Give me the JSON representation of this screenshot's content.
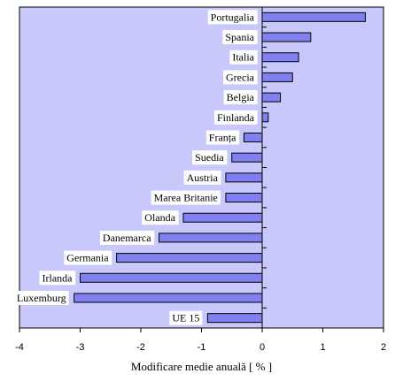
{
  "chart_data": {
    "type": "bar",
    "orientation": "horizontal",
    "categories": [
      "Portugalia",
      "Spania",
      "Italia",
      "Grecia",
      "Belgia",
      "Finlanda",
      "Franța",
      "Suedia",
      "Austria",
      "Marea Britanie",
      "Olanda",
      "Danemarca",
      "Germania",
      "Irlanda",
      "Luxemburg",
      "UE 15"
    ],
    "values": [
      1.7,
      0.8,
      0.6,
      0.5,
      0.3,
      0.1,
      -0.3,
      -0.5,
      -0.6,
      -0.6,
      -1.3,
      -1.7,
      -2.4,
      -3.0,
      -3.1,
      -0.9
    ],
    "xlim": [
      -4,
      2
    ],
    "xticks": [
      "-4",
      "-3",
      "-2",
      "-1",
      "0",
      "1",
      "2"
    ],
    "xlabel": "Modificare medie anuală  [ % ]",
    "title": "",
    "grid": false,
    "colors": {
      "plot_bg": "#c8c8fa",
      "bar": "#8080f0",
      "label_bg": "#ffffff"
    }
  }
}
